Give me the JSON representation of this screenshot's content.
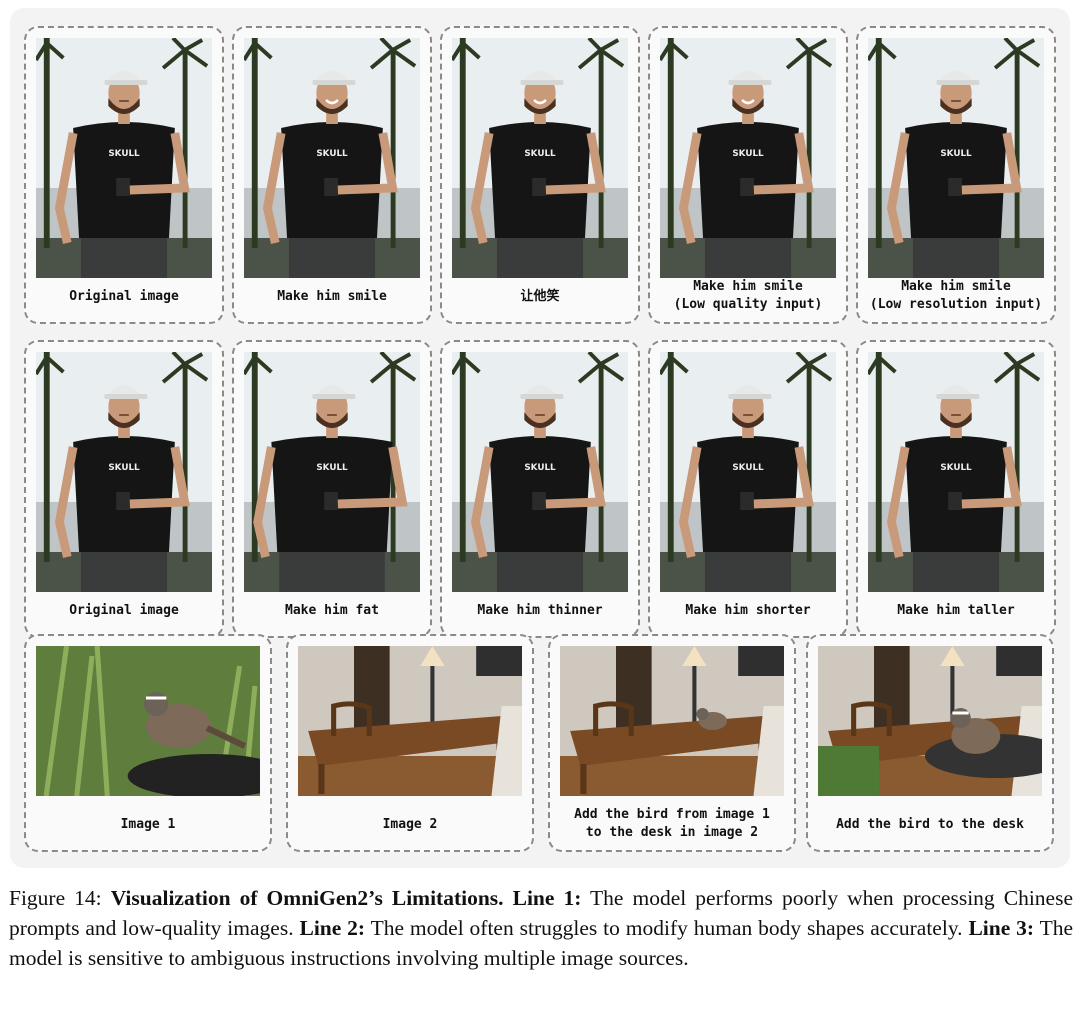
{
  "rows": [
    {
      "kind": "person",
      "cards": [
        {
          "lines": [
            "Original image"
          ],
          "smile": false,
          "body": "normal",
          "scale": 1.0
        },
        {
          "lines": [
            "Make him smile"
          ],
          "smile": true,
          "body": "normal",
          "scale": 1.0
        },
        {
          "lines": [
            "让他笑"
          ],
          "smile": true,
          "body": "normal",
          "scale": 1.0
        },
        {
          "lines": [
            "Make him smile",
            "(Low quality input)"
          ],
          "smile": true,
          "body": "normal",
          "scale": 1.0
        },
        {
          "lines": [
            "Make him smile",
            "(Low resolution input)"
          ],
          "smile": false,
          "body": "normal",
          "scale": 1.0
        }
      ]
    },
    {
      "kind": "person",
      "cards": [
        {
          "lines": [
            "Original image"
          ],
          "smile": false,
          "body": "normal",
          "scale": 1.0
        },
        {
          "lines": [
            "Make him fat"
          ],
          "smile": false,
          "body": "fat",
          "scale": 1.0
        },
        {
          "lines": [
            "Make him thinner"
          ],
          "smile": false,
          "body": "normal",
          "scale": 1.0
        },
        {
          "lines": [
            "Make him shorter"
          ],
          "smile": false,
          "body": "normal",
          "scale": 1.0
        },
        {
          "lines": [
            "Make him taller"
          ],
          "smile": false,
          "body": "normal",
          "scale": 1.0
        }
      ]
    },
    {
      "kind": "scene",
      "cards": [
        {
          "lines": [
            "Image 1"
          ],
          "scene": "bird"
        },
        {
          "lines": [
            "Image 2"
          ],
          "scene": "room"
        },
        {
          "lines": [
            "Add the bird from image 1",
            "to the desk in image 2"
          ],
          "scene": "room-bird"
        },
        {
          "lines": [
            "Add the bird to the desk"
          ],
          "scene": "room-bird-big"
        }
      ]
    }
  ],
  "figure_caption": {
    "prefix": "Figure 14: ",
    "title": "Visualization of OmniGen2’s Limitations.",
    "line1_label": " Line 1:",
    "line1_text": " The model performs poorly when processing Chinese prompts and low-quality images.",
    "line2_label": " Line 2:",
    "line2_text": " The model often struggles to modify human body shapes accurately.",
    "line3_label": " Line 3:",
    "line3_text": " The model is sensitive to ambiguous instructions involving multiple image sources."
  },
  "colors": {
    "shirt": "#151515",
    "skin": "#c99a7a",
    "sky": "#e9eef0",
    "palm": "#2d3a22",
    "wood": "#7a4a24",
    "wall": "#cfc8bf",
    "foliage": "#5f7d3c"
  }
}
